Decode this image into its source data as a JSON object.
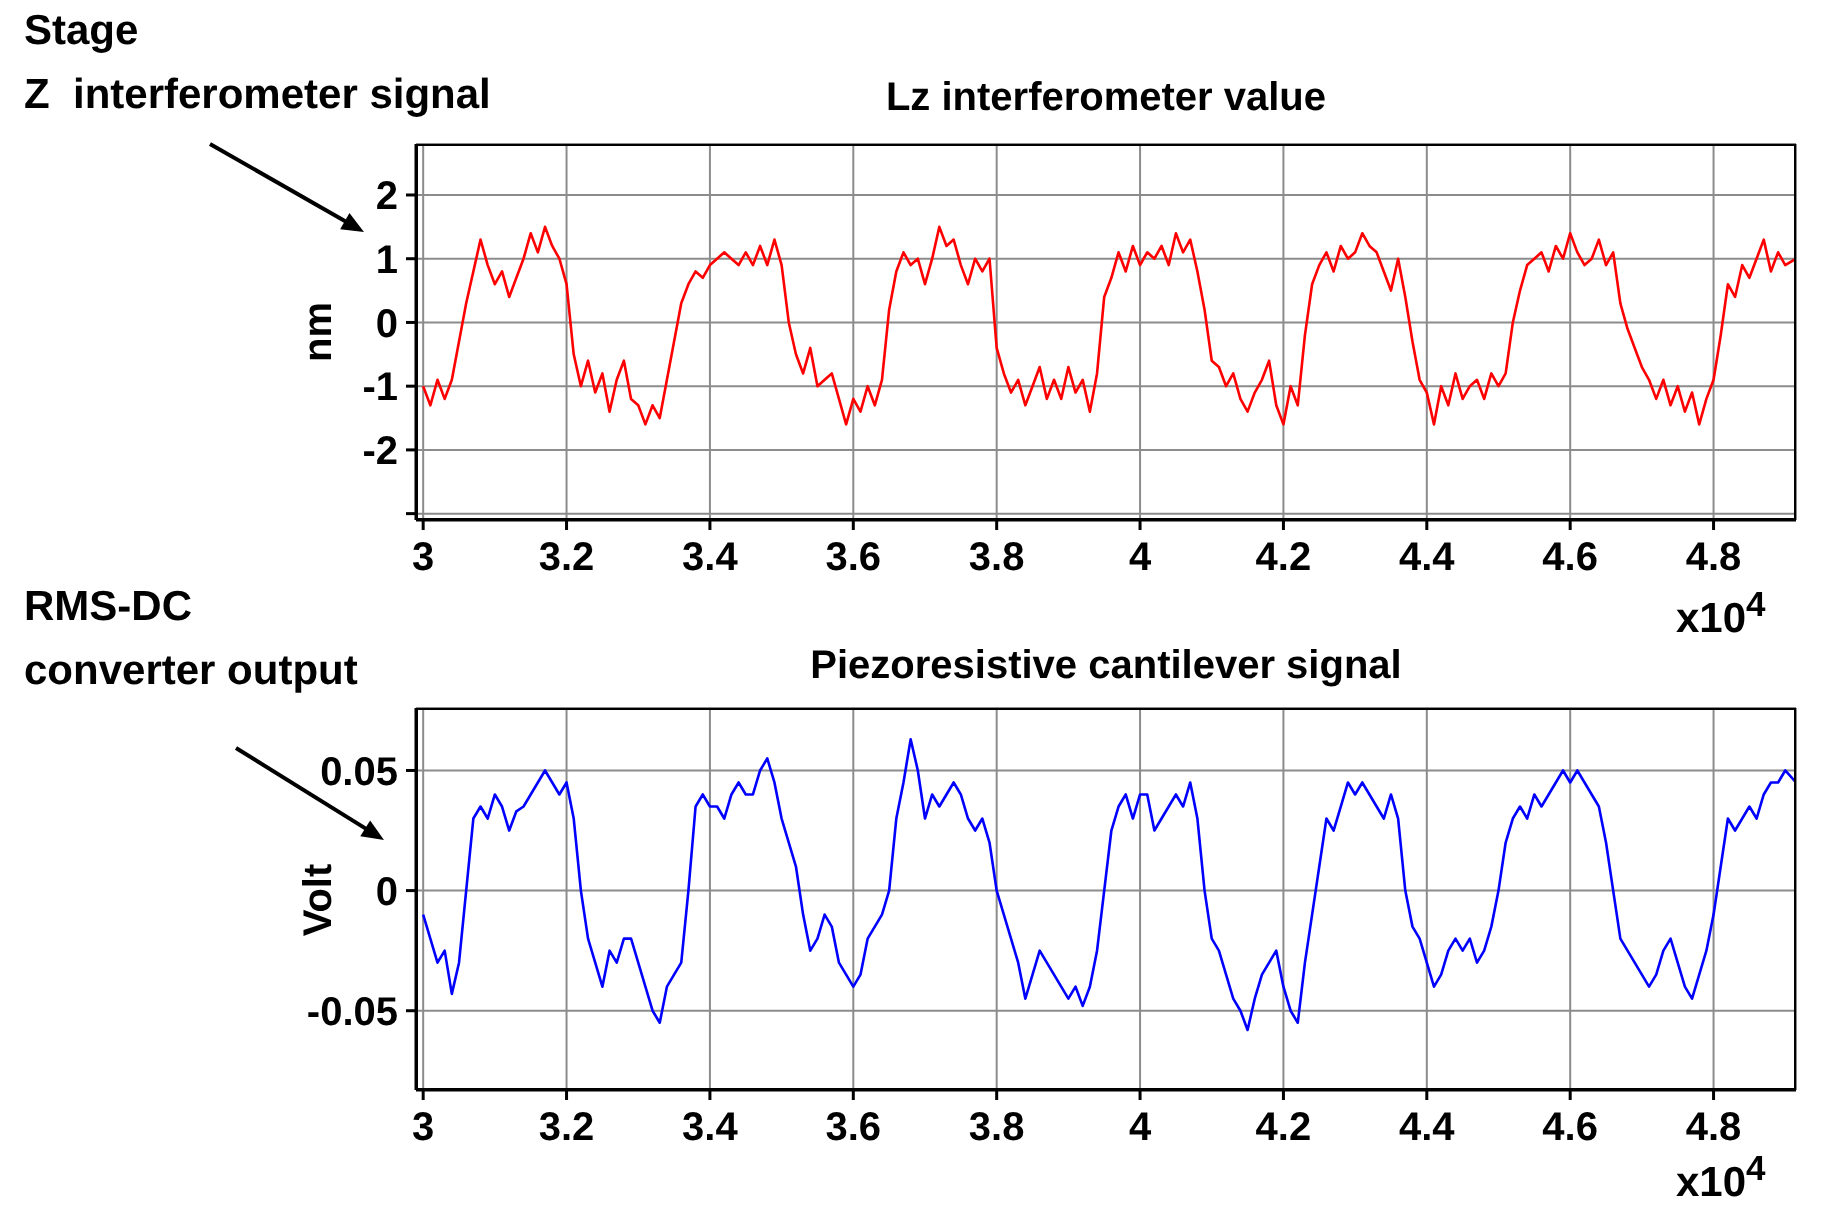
{
  "chart_data": [
    {
      "type": "line",
      "title": "Lz interferometer value",
      "ylabel": "nm",
      "annotations": [
        "Stage",
        "Z  interferometer signal",
        "x10$^{4}$"
      ],
      "grid": true,
      "marker": "none",
      "line_style": "solid",
      "xlim": [
        2.99,
        4.915
      ],
      "xticks": [
        3,
        3.2,
        3.4,
        3.6,
        3.8,
        4,
        4.2,
        4.4,
        4.6,
        4.8
      ],
      "ylim": [
        -3.1,
        2.8
      ],
      "yticks": [
        {
          "value": -3,
          "label": null
        },
        -2,
        -1,
        0,
        1,
        2
      ],
      "x": [
        3.0,
        3.01,
        3.02,
        3.03,
        3.04,
        3.05,
        3.06,
        3.07,
        3.08,
        3.09,
        3.1,
        3.11,
        3.12,
        3.13,
        3.14,
        3.15,
        3.16,
        3.17,
        3.18,
        3.19,
        3.2,
        3.21,
        3.22,
        3.23,
        3.24,
        3.25,
        3.26,
        3.27,
        3.28,
        3.29,
        3.3,
        3.31,
        3.32,
        3.33,
        3.34,
        3.35,
        3.36,
        3.37,
        3.38,
        3.39,
        3.4,
        3.41,
        3.42,
        3.43,
        3.44,
        3.45,
        3.46,
        3.47,
        3.48,
        3.49,
        3.5,
        3.51,
        3.52,
        3.53,
        3.54,
        3.55,
        3.56,
        3.57,
        3.58,
        3.59,
        3.6,
        3.61,
        3.62,
        3.63,
        3.64,
        3.65,
        3.66,
        3.67,
        3.68,
        3.69,
        3.7,
        3.71,
        3.72,
        3.73,
        3.74,
        3.75,
        3.76,
        3.77,
        3.78,
        3.79,
        3.8,
        3.81,
        3.82,
        3.83,
        3.84,
        3.85,
        3.86,
        3.87,
        3.88,
        3.89,
        3.9,
        3.91,
        3.92,
        3.93,
        3.94,
        3.95,
        3.96,
        3.97,
        3.98,
        3.99,
        4.0,
        4.01,
        4.02,
        4.03,
        4.04,
        4.05,
        4.06,
        4.07,
        4.08,
        4.09,
        4.1,
        4.11,
        4.12,
        4.13,
        4.14,
        4.15,
        4.16,
        4.17,
        4.18,
        4.19,
        4.2,
        4.21,
        4.22,
        4.23,
        4.24,
        4.25,
        4.26,
        4.27,
        4.28,
        4.29,
        4.3,
        4.31,
        4.32,
        4.33,
        4.34,
        4.35,
        4.36,
        4.37,
        4.38,
        4.39,
        4.4,
        4.41,
        4.42,
        4.43,
        4.44,
        4.45,
        4.46,
        4.47,
        4.48,
        4.49,
        4.5,
        4.51,
        4.52,
        4.53,
        4.54,
        4.55,
        4.56,
        4.57,
        4.58,
        4.59,
        4.6,
        4.61,
        4.62,
        4.63,
        4.64,
        4.65,
        4.66,
        4.67,
        4.68,
        4.69,
        4.7,
        4.71,
        4.72,
        4.73,
        4.74,
        4.75,
        4.76,
        4.77,
        4.78,
        4.79,
        4.8,
        4.81,
        4.82,
        4.83,
        4.84,
        4.85,
        4.86,
        4.87,
        4.88,
        4.89,
        4.9,
        4.915
      ],
      "series": [
        {
          "color": "#ff0000",
          "values": [
            -1.0,
            -1.3,
            -0.9,
            -1.2,
            -0.9,
            -0.3,
            0.3,
            0.8,
            1.3,
            0.9,
            0.6,
            0.8,
            0.4,
            0.7,
            1.0,
            1.4,
            1.1,
            1.5,
            1.2,
            1.0,
            0.6,
            -0.5,
            -1.0,
            -0.6,
            -1.1,
            -0.8,
            -1.4,
            -0.9,
            -0.6,
            -1.2,
            -1.3,
            -1.6,
            -1.3,
            -1.5,
            -0.9,
            -0.3,
            0.3,
            0.6,
            0.8,
            0.7,
            0.9,
            1.0,
            1.1,
            1.0,
            0.9,
            1.1,
            0.9,
            1.2,
            0.9,
            1.3,
            0.9,
            0.0,
            -0.5,
            -0.8,
            -0.4,
            -1.0,
            -0.9,
            -0.8,
            -1.2,
            -1.6,
            -1.2,
            -1.4,
            -1.0,
            -1.3,
            -0.9,
            0.2,
            0.8,
            1.1,
            0.9,
            1.0,
            0.6,
            1.0,
            1.5,
            1.2,
            1.3,
            0.9,
            0.6,
            1.0,
            0.8,
            1.0,
            -0.4,
            -0.8,
            -1.1,
            -0.9,
            -1.3,
            -1.0,
            -0.7,
            -1.2,
            -0.9,
            -1.2,
            -0.7,
            -1.1,
            -0.9,
            -1.4,
            -0.8,
            0.4,
            0.7,
            1.1,
            0.8,
            1.2,
            0.9,
            1.1,
            1.0,
            1.2,
            0.9,
            1.4,
            1.1,
            1.3,
            0.8,
            0.2,
            -0.6,
            -0.7,
            -1.0,
            -0.8,
            -1.2,
            -1.4,
            -1.1,
            -0.9,
            -0.6,
            -1.3,
            -1.6,
            -1.0,
            -1.3,
            -0.2,
            0.6,
            0.9,
            1.1,
            0.8,
            1.2,
            1.0,
            1.1,
            1.4,
            1.2,
            1.1,
            0.8,
            0.5,
            1.0,
            0.4,
            -0.3,
            -0.9,
            -1.1,
            -1.6,
            -1.0,
            -1.3,
            -0.8,
            -1.2,
            -1.0,
            -0.9,
            -1.2,
            -0.8,
            -1.0,
            -0.8,
            0.0,
            0.5,
            0.9,
            1.0,
            1.1,
            0.8,
            1.2,
            1.0,
            1.4,
            1.1,
            0.9,
            1.0,
            1.3,
            0.9,
            1.1,
            0.3,
            -0.1,
            -0.4,
            -0.7,
            -0.9,
            -1.2,
            -0.9,
            -1.3,
            -1.0,
            -1.4,
            -1.1,
            -1.6,
            -1.2,
            -0.9,
            -0.2,
            0.6,
            0.4,
            0.9,
            0.7,
            1.0,
            1.3,
            0.8,
            1.1,
            0.9,
            1.0
          ]
        }
      ]
    },
    {
      "type": "line",
      "title": "Piezoresistive cantilever signal",
      "ylabel": "Volt",
      "annotations": [
        "RMS-DC",
        "converter output",
        "x10$^{4}$"
      ],
      "grid": true,
      "marker": "none",
      "line_style": "solid",
      "xlim": [
        2.99,
        4.915
      ],
      "xticks": [
        3,
        3.2,
        3.4,
        3.6,
        3.8,
        4,
        4.2,
        4.4,
        4.6,
        4.8
      ],
      "ylim": [
        -0.083,
        0.076
      ],
      "yticks": [
        -0.05,
        0,
        0.05
      ],
      "x": [
        3.0,
        3.01,
        3.02,
        3.03,
        3.04,
        3.05,
        3.06,
        3.07,
        3.08,
        3.09,
        3.1,
        3.11,
        3.12,
        3.13,
        3.14,
        3.15,
        3.16,
        3.17,
        3.18,
        3.19,
        3.2,
        3.21,
        3.22,
        3.23,
        3.24,
        3.25,
        3.26,
        3.27,
        3.28,
        3.29,
        3.3,
        3.31,
        3.32,
        3.33,
        3.34,
        3.35,
        3.36,
        3.37,
        3.38,
        3.39,
        3.4,
        3.41,
        3.42,
        3.43,
        3.44,
        3.45,
        3.46,
        3.47,
        3.48,
        3.49,
        3.5,
        3.51,
        3.52,
        3.53,
        3.54,
        3.55,
        3.56,
        3.57,
        3.58,
        3.59,
        3.6,
        3.61,
        3.62,
        3.63,
        3.64,
        3.65,
        3.66,
        3.67,
        3.68,
        3.69,
        3.7,
        3.71,
        3.72,
        3.73,
        3.74,
        3.75,
        3.76,
        3.77,
        3.78,
        3.79,
        3.8,
        3.81,
        3.82,
        3.83,
        3.84,
        3.85,
        3.86,
        3.87,
        3.88,
        3.89,
        3.9,
        3.91,
        3.92,
        3.93,
        3.94,
        3.95,
        3.96,
        3.97,
        3.98,
        3.99,
        4.0,
        4.01,
        4.02,
        4.03,
        4.04,
        4.05,
        4.06,
        4.07,
        4.08,
        4.09,
        4.1,
        4.11,
        4.12,
        4.13,
        4.14,
        4.15,
        4.16,
        4.17,
        4.18,
        4.19,
        4.2,
        4.21,
        4.22,
        4.23,
        4.24,
        4.25,
        4.26,
        4.27,
        4.28,
        4.29,
        4.3,
        4.31,
        4.32,
        4.33,
        4.34,
        4.35,
        4.36,
        4.37,
        4.38,
        4.39,
        4.4,
        4.41,
        4.42,
        4.43,
        4.44,
        4.45,
        4.46,
        4.47,
        4.48,
        4.49,
        4.5,
        4.51,
        4.52,
        4.53,
        4.54,
        4.55,
        4.56,
        4.57,
        4.58,
        4.59,
        4.6,
        4.61,
        4.62,
        4.63,
        4.64,
        4.65,
        4.66,
        4.67,
        4.68,
        4.69,
        4.7,
        4.71,
        4.72,
        4.73,
        4.74,
        4.75,
        4.76,
        4.77,
        4.78,
        4.79,
        4.8,
        4.81,
        4.82,
        4.83,
        4.84,
        4.85,
        4.86,
        4.87,
        4.88,
        4.89,
        4.9,
        4.915
      ],
      "series": [
        {
          "color": "#0000ff",
          "values": [
            -0.01,
            -0.02,
            -0.03,
            -0.025,
            -0.043,
            -0.03,
            0.0,
            0.03,
            0.035,
            0.03,
            0.04,
            0.035,
            0.025,
            0.033,
            0.035,
            0.04,
            0.045,
            0.05,
            0.045,
            0.04,
            0.045,
            0.03,
            0.0,
            -0.02,
            -0.03,
            -0.04,
            -0.025,
            -0.03,
            -0.02,
            -0.02,
            -0.03,
            -0.04,
            -0.05,
            -0.055,
            -0.04,
            -0.035,
            -0.03,
            0.0,
            0.035,
            0.04,
            0.035,
            0.035,
            0.03,
            0.04,
            0.045,
            0.04,
            0.04,
            0.05,
            0.055,
            0.045,
            0.03,
            0.02,
            0.01,
            -0.01,
            -0.025,
            -0.02,
            -0.01,
            -0.015,
            -0.03,
            -0.035,
            -0.04,
            -0.035,
            -0.02,
            -0.015,
            -0.01,
            0.0,
            0.03,
            0.045,
            0.063,
            0.05,
            0.03,
            0.04,
            0.035,
            0.04,
            0.045,
            0.04,
            0.03,
            0.025,
            0.03,
            0.02,
            0.0,
            -0.01,
            -0.02,
            -0.03,
            -0.045,
            -0.035,
            -0.025,
            -0.03,
            -0.035,
            -0.04,
            -0.045,
            -0.04,
            -0.048,
            -0.04,
            -0.025,
            0.0,
            0.025,
            0.035,
            0.04,
            0.03,
            0.04,
            0.04,
            0.025,
            0.03,
            0.035,
            0.04,
            0.035,
            0.045,
            0.03,
            0.0,
            -0.02,
            -0.025,
            -0.035,
            -0.045,
            -0.05,
            -0.058,
            -0.045,
            -0.035,
            -0.03,
            -0.025,
            -0.04,
            -0.05,
            -0.055,
            -0.03,
            -0.01,
            0.01,
            0.03,
            0.025,
            0.035,
            0.045,
            0.04,
            0.045,
            0.04,
            0.035,
            0.03,
            0.04,
            0.03,
            0.0,
            -0.015,
            -0.02,
            -0.03,
            -0.04,
            -0.035,
            -0.025,
            -0.02,
            -0.025,
            -0.02,
            -0.03,
            -0.025,
            -0.015,
            0.0,
            0.02,
            0.03,
            0.035,
            0.03,
            0.04,
            0.035,
            0.04,
            0.045,
            0.05,
            0.045,
            0.05,
            0.045,
            0.04,
            0.035,
            0.02,
            0.0,
            -0.02,
            -0.025,
            -0.03,
            -0.035,
            -0.04,
            -0.035,
            -0.025,
            -0.02,
            -0.03,
            -0.04,
            -0.045,
            -0.035,
            -0.025,
            -0.01,
            0.01,
            0.03,
            0.025,
            0.03,
            0.035,
            0.03,
            0.04,
            0.045,
            0.045,
            0.05,
            0.045
          ]
        }
      ]
    }
  ]
}
